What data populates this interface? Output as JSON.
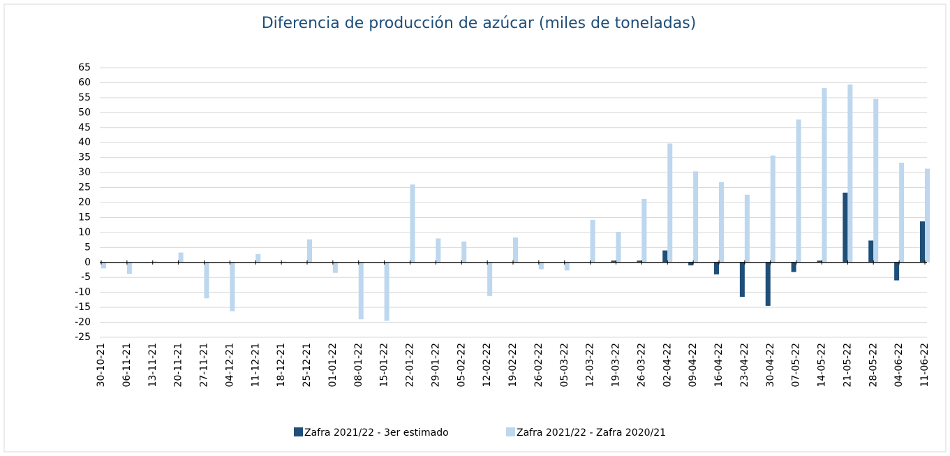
{
  "chart_data": {
    "type": "bar",
    "title": "Diferencia de producción de azúcar (miles de toneladas)",
    "categories": [
      "30-10-21",
      "06-11-21",
      "13-11-21",
      "20-11-21",
      "27-11-21",
      "04-12-21",
      "11-12-21",
      "18-12-21",
      "25-12-21",
      "01-01-22",
      "08-01-22",
      "15-01-22",
      "22-01-22",
      "29-01-22",
      "05-02-22",
      "12-02-22",
      "19-02-22",
      "26-02-22",
      "05-03-22",
      "12-03-22",
      "19-03-22",
      "26-03-22",
      "02-04-22",
      "09-04-22",
      "16-04-22",
      "23-04-22",
      "30-04-22",
      "07-05-22",
      "14-05-22",
      "21-05-22",
      "28-05-22",
      "04-06-22",
      "11-06-22"
    ],
    "series": [
      {
        "name": "Zafra 2021/22 - 3er estimado",
        "color": "#1f4e79",
        "values": [
          0,
          0,
          0,
          0,
          0,
          0,
          0,
          0,
          0,
          0,
          0,
          0,
          0,
          0,
          0,
          0,
          0,
          0,
          0,
          0,
          0.6,
          0.6,
          4,
          -1,
          -4,
          -11.5,
          -14.5,
          -3.2,
          0.6,
          23.3,
          7.3,
          -6,
          13.7
        ]
      },
      {
        "name": "Zafra 2021/22 - Zafra 2020/21",
        "color": "#bdd7ee",
        "values": [
          -2,
          -3.8,
          0.3,
          3.3,
          -12,
          -16.3,
          2.8,
          0.3,
          7.7,
          -3.5,
          -19,
          -19.5,
          26,
          8,
          7,
          -11.2,
          8.3,
          -2.3,
          -2.7,
          14.2,
          10.2,
          21.2,
          39.7,
          30.4,
          26.8,
          22.6,
          35.7,
          47.7,
          58.2,
          59.4,
          54.6,
          33.3,
          31.3
        ]
      }
    ],
    "ylim": [
      -25,
      65
    ],
    "yticks": [
      -25,
      -20,
      -15,
      -10,
      -5,
      0,
      5,
      10,
      15,
      20,
      25,
      30,
      35,
      40,
      45,
      50,
      55,
      60,
      65
    ],
    "grid": true,
    "legend": "bottom"
  }
}
